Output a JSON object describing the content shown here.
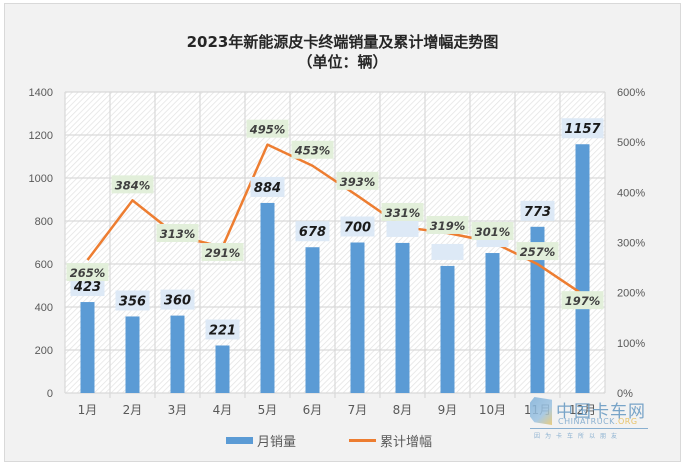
{
  "chart_data": {
    "type": "bar+line",
    "title": "2023年新能源皮卡终端销量及累计增幅走势图",
    "subtitle": "（单位：辆）",
    "categories": [
      "1月",
      "2月",
      "3月",
      "4月",
      "5月",
      "6月",
      "7月",
      "8月",
      "9月",
      "10月",
      "11月",
      "12月"
    ],
    "series": [
      {
        "name": "月销量",
        "type": "bar",
        "axis": "left",
        "color": "#5b9bd5",
        "values": [
          423,
          356,
          360,
          221,
          884,
          678,
          700,
          698,
          591,
          651,
          773,
          1157
        ],
        "labels": [
          "423",
          "356",
          "360",
          "221",
          "884",
          "678",
          "700",
          "",
          "",
          "",
          "773",
          "1157"
        ]
      },
      {
        "name": "累计增幅",
        "type": "line",
        "axis": "right",
        "color": "#ed7d31",
        "values": [
          265,
          384,
          313,
          291,
          495,
          453,
          393,
          331,
          319,
          301,
          257,
          197
        ],
        "labels": [
          "265%",
          "384%",
          "313%",
          "291%",
          "495%",
          "453%",
          "393%",
          "331%",
          "319%",
          "301%",
          "257%",
          "197%"
        ]
      }
    ],
    "y_left": {
      "ticks": [
        "0",
        "200",
        "400",
        "600",
        "800",
        "1000",
        "1200",
        "1400"
      ],
      "ylim": [
        0,
        1400
      ]
    },
    "y_right": {
      "ticks": [
        "0%",
        "100%",
        "200%",
        "300%",
        "400%",
        "500%",
        "600%"
      ],
      "ylim": [
        0,
        600
      ]
    },
    "legend_position": "bottom",
    "grid": true
  },
  "legend": {
    "bar_label": "月销量",
    "line_label": "累计增幅"
  },
  "watermark": {
    "cn": "中国卡车网",
    "en": "CHINATRUCK",
    "org": ".ORG",
    "slogan": "因为卡车所以朋友"
  }
}
